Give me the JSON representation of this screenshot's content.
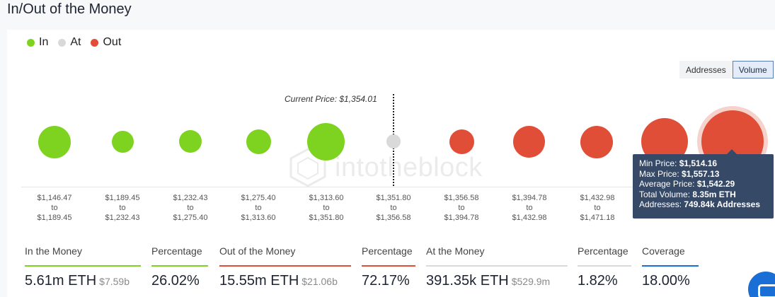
{
  "title": "In/Out of the Money",
  "legend": [
    {
      "label": "In",
      "color": "#7ed321"
    },
    {
      "label": "At",
      "color": "#d9d9d9"
    },
    {
      "label": "Out",
      "color": "#e04e37"
    }
  ],
  "toggle": {
    "addresses": "Addresses",
    "volume": "Volume",
    "selected": "Volume"
  },
  "current_price_label": "Current Price: $1,354.01",
  "watermark": "intotheblock",
  "ranges": [
    {
      "from": "$1,146.47",
      "to_word": "to",
      "to": "$1,189.45",
      "status": "in"
    },
    {
      "from": "$1,189.45",
      "to_word": "to",
      "to": "$1,232.43",
      "status": "in"
    },
    {
      "from": "$1,232.43",
      "to_word": "to",
      "to": "$1,275.40",
      "status": "in"
    },
    {
      "from": "$1,275.40",
      "to_word": "to",
      "to": "$1,313.60",
      "status": "in"
    },
    {
      "from": "$1,313.60",
      "to_word": "to",
      "to": "$1,351.80",
      "status": "in"
    },
    {
      "from": "$1,351.80",
      "to_word": "to",
      "to": "$1,356.58",
      "status": "at"
    },
    {
      "from": "$1,356.58",
      "to_word": "to",
      "to": "$1,394.78",
      "status": "out"
    },
    {
      "from": "$1,394.78",
      "to_word": "to",
      "to": "$1,432.98",
      "status": "out"
    },
    {
      "from": "$1,432.98",
      "to_word": "to",
      "to": "$1,471.18",
      "status": "out"
    }
  ],
  "tooltip": {
    "min_price_label": "Min Price:",
    "min_price": "$1,514.16",
    "max_price_label": "Max Price:",
    "max_price": "$1,557.13",
    "avg_price_label": "Average Price:",
    "avg_price": "$1,542.29",
    "total_volume_label": "Total Volume:",
    "total_volume": "8.35m ETH",
    "addresses_label": "Addresses:",
    "addresses": "749.84k Addresses"
  },
  "stats": {
    "in_label": "In the Money",
    "in_value": "5.61m ETH",
    "in_usd": "$7.59b",
    "in_color": "#7ed321",
    "in_pct_label": "Percentage",
    "in_pct": "26.02%",
    "out_label": "Out of the Money",
    "out_value": "15.55m ETH",
    "out_usd": "$21.06b",
    "out_color": "#e04e37",
    "out_pct_label": "Percentage",
    "out_pct": "72.17%",
    "at_label": "At the Money",
    "at_value": "391.35k ETH",
    "at_usd": "$529.9m",
    "at_color": "#d9d9d9",
    "at_pct_label": "Percentage",
    "at_pct": "1.82%",
    "coverage_label": "Coverage",
    "coverage": "18.00%",
    "coverage_color": "#1a6fd6"
  }
}
